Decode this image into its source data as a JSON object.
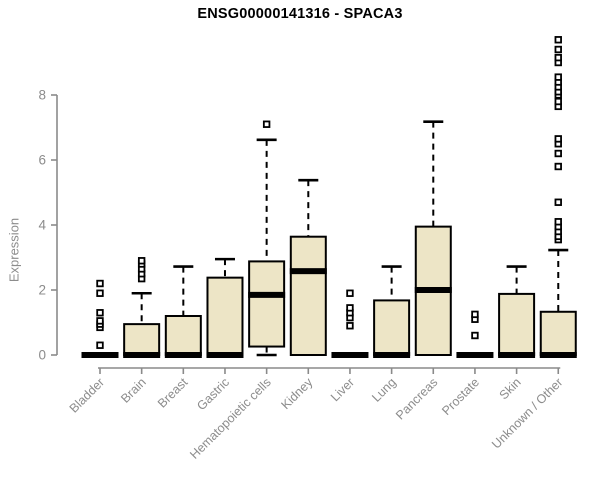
{
  "chart_data": {
    "type": "boxplot",
    "title": "ENSG00000141316 - SPACA3",
    "ylabel": "Expression",
    "xlabel": "",
    "ylim": [
      0,
      10
    ],
    "yticks": [
      0,
      2,
      4,
      6,
      8
    ],
    "grid": false,
    "legend": null,
    "categories": [
      "Bladder",
      "Brain",
      "Breast",
      "Gastric",
      "Hematopoietic cells",
      "Kidney",
      "Liver",
      "Lung",
      "Pancreas",
      "Prostate",
      "Skin",
      "Unknown / Other"
    ],
    "boxes": [
      {
        "category": "Bladder",
        "q1": 0,
        "median": 0,
        "q3": 0,
        "whisker_low": null,
        "whisker_high": null,
        "outliers": [
          0.3,
          0.85,
          0.95,
          1.05,
          1.3,
          1.9,
          2.2
        ]
      },
      {
        "category": "Brain",
        "q1": 0,
        "median": 0,
        "q3": 0.95,
        "whisker_low": null,
        "whisker_high": 1.9,
        "outliers": [
          2.35,
          2.5,
          2.65,
          2.8,
          2.9
        ]
      },
      {
        "category": "Breast",
        "q1": 0,
        "median": 0,
        "q3": 1.2,
        "whisker_low": null,
        "whisker_high": 2.72,
        "outliers": []
      },
      {
        "category": "Gastric",
        "q1": 0,
        "median": 0,
        "q3": 2.38,
        "whisker_low": null,
        "whisker_high": 2.95,
        "outliers": []
      },
      {
        "category": "Hematopoietic cells",
        "q1": 0.26,
        "median": 1.85,
        "q3": 2.88,
        "whisker_low": 0,
        "whisker_high": 6.62,
        "outliers": [
          7.1
        ]
      },
      {
        "category": "Kidney",
        "q1": 0,
        "median": 2.58,
        "q3": 3.64,
        "whisker_low": null,
        "whisker_high": 5.38,
        "outliers": []
      },
      {
        "category": "Liver",
        "q1": 0,
        "median": 0,
        "q3": 0,
        "whisker_low": null,
        "whisker_high": null,
        "outliers": [
          0.9,
          1.15,
          1.3,
          1.45,
          1.9
        ]
      },
      {
        "category": "Lung",
        "q1": 0,
        "median": 0,
        "q3": 1.68,
        "whisker_low": null,
        "whisker_high": 2.72,
        "outliers": []
      },
      {
        "category": "Pancreas",
        "q1": 0,
        "median": 2.0,
        "q3": 3.95,
        "whisker_low": null,
        "whisker_high": 7.18,
        "outliers": []
      },
      {
        "category": "Prostate",
        "q1": 0,
        "median": 0,
        "q3": 0,
        "whisker_low": null,
        "whisker_high": null,
        "outliers": [
          0.6,
          1.1,
          1.25
        ]
      },
      {
        "category": "Skin",
        "q1": 0,
        "median": 0,
        "q3": 1.88,
        "whisker_low": null,
        "whisker_high": 2.72,
        "outliers": []
      },
      {
        "category": "Unknown / Other",
        "q1": 0,
        "median": 0,
        "q3": 1.33,
        "whisker_low": null,
        "whisker_high": 3.23,
        "outliers": [
          3.55,
          3.65,
          3.8,
          3.95,
          4.1,
          4.7,
          5.8,
          6.2,
          6.5,
          6.65,
          7.65,
          7.8,
          8.0,
          8.1,
          8.25,
          8.4,
          8.55,
          9.0,
          9.15,
          9.4,
          9.7
        ]
      }
    ],
    "colors": {
      "box_fill": "#EDE5C6",
      "box_border": "#000000",
      "median": "#000000",
      "whisker": "#000000",
      "outlier_stroke": "#000000",
      "outlier_fill": "#ffffff",
      "axis": "#8a8a8a",
      "tick_label": "#8c8c8c",
      "title": "#000000",
      "background": "#ffffff"
    }
  }
}
